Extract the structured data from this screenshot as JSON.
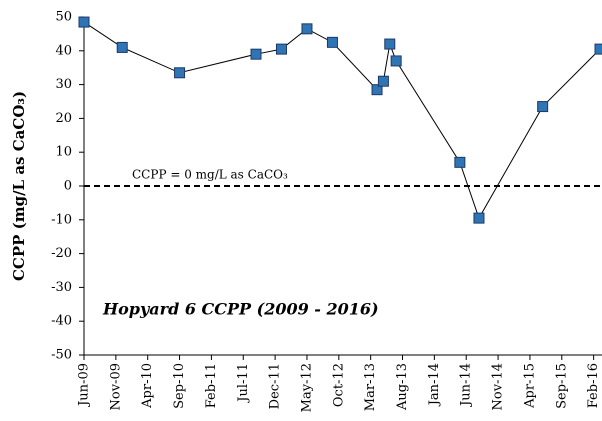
{
  "chart_data": {
    "type": "line",
    "title": "Hopyard 6 CCPP (2009 - 2016)",
    "y_label": "CCPP (mg/L as CaCO₃)",
    "annotation": "CCPP = 0 mg/L as CaCO₃",
    "reference_line": 0,
    "x": [
      "2009-06",
      "2009-12",
      "2010-09",
      "2011-09",
      "2012-01",
      "2012-05",
      "2012-09",
      "2013-04",
      "2013-05",
      "2013-06",
      "2013-07",
      "2014-05",
      "2014-08",
      "2015-06",
      "2016-03"
    ],
    "series": [
      {
        "name": "CCPP",
        "color": "#2e75b6",
        "values": [
          48.5,
          41,
          33.5,
          39,
          40.5,
          46.5,
          42.5,
          28.5,
          31,
          42,
          37,
          7,
          -9.5,
          23.5,
          40.5
        ]
      }
    ],
    "xlim": [
      "2009-06",
      "2016-03"
    ],
    "xticks": [
      {
        "value": "2009-06",
        "label": "Jun-09"
      },
      {
        "value": "2009-11",
        "label": "Nov-09"
      },
      {
        "value": "2010-04",
        "label": "Apr-10"
      },
      {
        "value": "2010-09",
        "label": "Sep-10"
      },
      {
        "value": "2011-02",
        "label": "Feb-11"
      },
      {
        "value": "2011-07",
        "label": "Jul-11"
      },
      {
        "value": "2011-12",
        "label": "Dec-11"
      },
      {
        "value": "2012-05",
        "label": "May-12"
      },
      {
        "value": "2012-10",
        "label": "Oct-12"
      },
      {
        "value": "2013-03",
        "label": "Mar-13"
      },
      {
        "value": "2013-08",
        "label": "Aug-13"
      },
      {
        "value": "2014-01",
        "label": "Jan-14"
      },
      {
        "value": "2014-06",
        "label": "Jun-14"
      },
      {
        "value": "2014-11",
        "label": "Nov-14"
      },
      {
        "value": "2015-04",
        "label": "Apr-15"
      },
      {
        "value": "2015-09",
        "label": "Sep-15"
      },
      {
        "value": "2016-02",
        "label": "Feb-16"
      }
    ],
    "ylim": [
      -50,
      50
    ],
    "yticks": [
      -50,
      -40,
      -30,
      -20,
      -10,
      0,
      10,
      20,
      30,
      40,
      50
    ]
  }
}
